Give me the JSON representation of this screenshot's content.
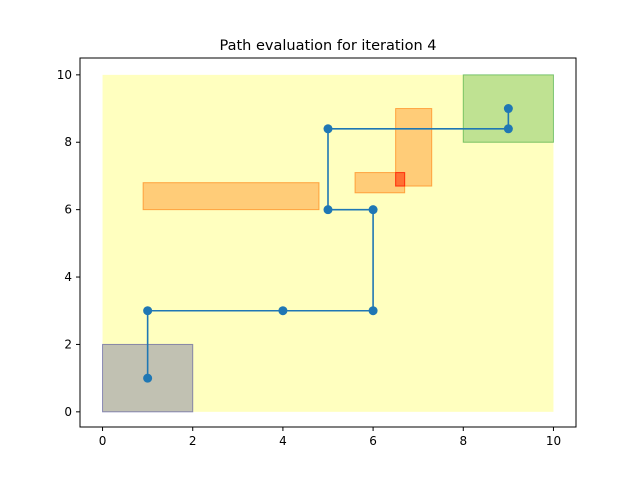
{
  "chart_data": {
    "type": "line",
    "title": "Path evaluation for iteration 4",
    "xlabel": "",
    "ylabel": "",
    "xlim": [
      -0.5,
      10.5
    ],
    "ylim": [
      -0.45,
      10.5
    ],
    "xticks": [
      0,
      2,
      4,
      6,
      8,
      10
    ],
    "yticks": [
      0,
      2,
      4,
      6,
      8,
      10
    ],
    "grid": false,
    "legend": "none",
    "regions": [
      {
        "kind": "workspace",
        "x0": 0,
        "y0": 0,
        "x1": 10,
        "y1": 10,
        "color": "#ffff00",
        "opacity": 0.25
      },
      {
        "kind": "start",
        "x0": 0,
        "y0": 0,
        "x1": 2,
        "y1": 2,
        "color": "#4c4c9a",
        "opacity": 0.35
      },
      {
        "kind": "goal",
        "x0": 8,
        "y0": 8,
        "x1": 10,
        "y1": 10,
        "color": "#2ca02c",
        "opacity": 0.3
      },
      {
        "kind": "obstacle",
        "x0": 0.9,
        "y0": 6.0,
        "x1": 4.8,
        "y1": 6.8,
        "color": "#ff7f0e",
        "opacity": 0.4
      },
      {
        "kind": "obstacle",
        "x0": 5.6,
        "y0": 6.5,
        "x1": 6.7,
        "y1": 7.1,
        "color": "#ff7f0e",
        "opacity": 0.4
      },
      {
        "kind": "obstacle",
        "x0": 6.5,
        "y0": 6.7,
        "x1": 7.3,
        "y1": 9.0,
        "color": "#ff7f0e",
        "opacity": 0.4
      },
      {
        "kind": "collision",
        "x0": 6.5,
        "y0": 6.7,
        "x1": 6.7,
        "y1": 7.1,
        "color": "#ff0000",
        "opacity": 0.35
      }
    ],
    "series": [
      {
        "color": "#1f77b4",
        "points": [
          [
            1,
            1
          ],
          [
            1,
            3
          ],
          [
            4,
            3
          ],
          [
            6,
            3
          ],
          [
            6,
            6
          ],
          [
            5,
            6
          ],
          [
            5,
            8.4
          ],
          [
            9,
            8.4
          ],
          [
            9,
            9
          ]
        ]
      }
    ]
  }
}
